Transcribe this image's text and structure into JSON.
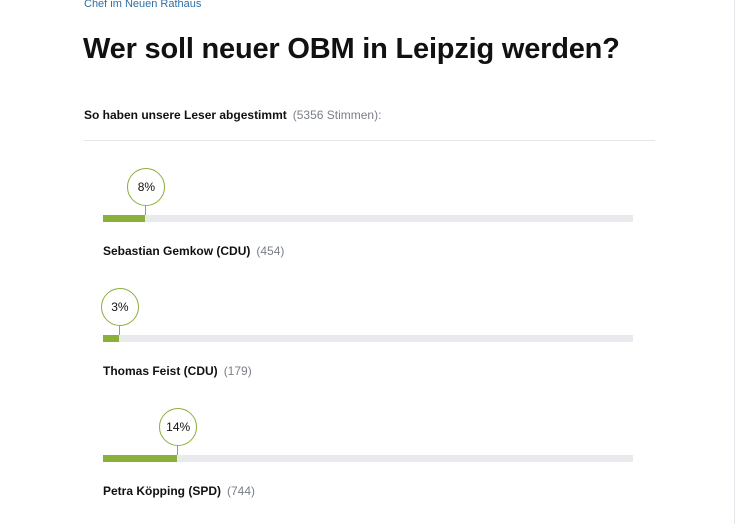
{
  "article": {
    "kicker": "Chef im Neuen Rathaus",
    "title": "Wer soll neuer OBM in Leipzig werden?"
  },
  "poll": {
    "summary_lead": "So haben unsere Leser abgestimmt",
    "summary_count": "(5356 Stimmen):",
    "accent_color": "#8ab03a",
    "track_color": "#e8eaee",
    "options": [
      {
        "name": "Sebastian Gemkow (CDU)",
        "votes": "(454)",
        "percent_label": "8%",
        "percent": 8
      },
      {
        "name": "Thomas Feist (CDU)",
        "votes": "(179)",
        "percent_label": "3%",
        "percent": 3
      },
      {
        "name": "Petra Köpping (SPD)",
        "votes": "(744)",
        "percent_label": "14%",
        "percent": 14
      }
    ]
  }
}
